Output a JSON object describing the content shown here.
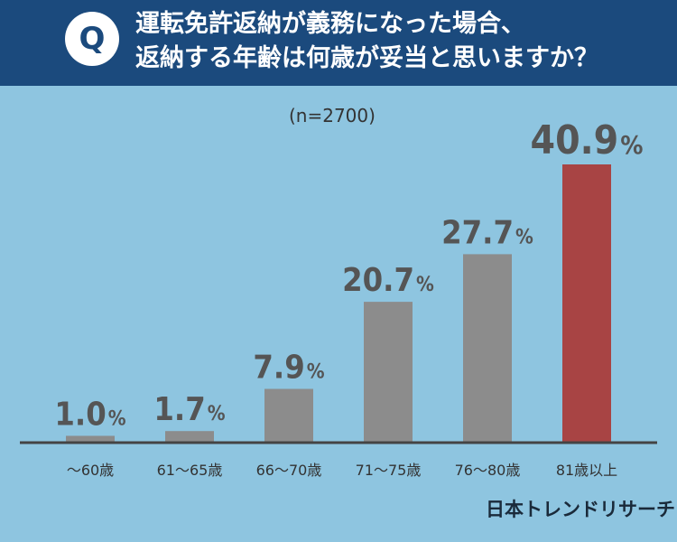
{
  "header": {
    "q_label": "Q",
    "question_line1": "運転免許返納が義務になった場合、",
    "question_line2": "返納する年齢は何歳が妥当と思いますか？",
    "background_color": "#1b4a7d"
  },
  "sample_size": "(n=2700)",
  "brand": "日本トレンドリサーチ",
  "chart_data": {
    "type": "bar",
    "title": "運転免許返納が義務になった場合、返納する年齢は何歳が妥当と思いますか？",
    "categories": [
      "〜60歳",
      "61〜65歳",
      "66〜70歳",
      "71〜75歳",
      "76〜80歳",
      "81歳以上"
    ],
    "values": [
      1.0,
      1.7,
      7.9,
      20.7,
      27.7,
      40.9
    ],
    "value_labels": [
      "1.0",
      "1.7",
      "7.9",
      "20.7",
      "27.7",
      "40.9"
    ],
    "unit": "%",
    "highlight_index": 5,
    "colors": {
      "bar": "#8c8c8c",
      "highlight": "#a84444",
      "label": "#555555",
      "axis": "#444444",
      "background": "#8ec5e0"
    },
    "ylim": [
      0,
      50
    ],
    "grid": false,
    "legend": "none"
  }
}
